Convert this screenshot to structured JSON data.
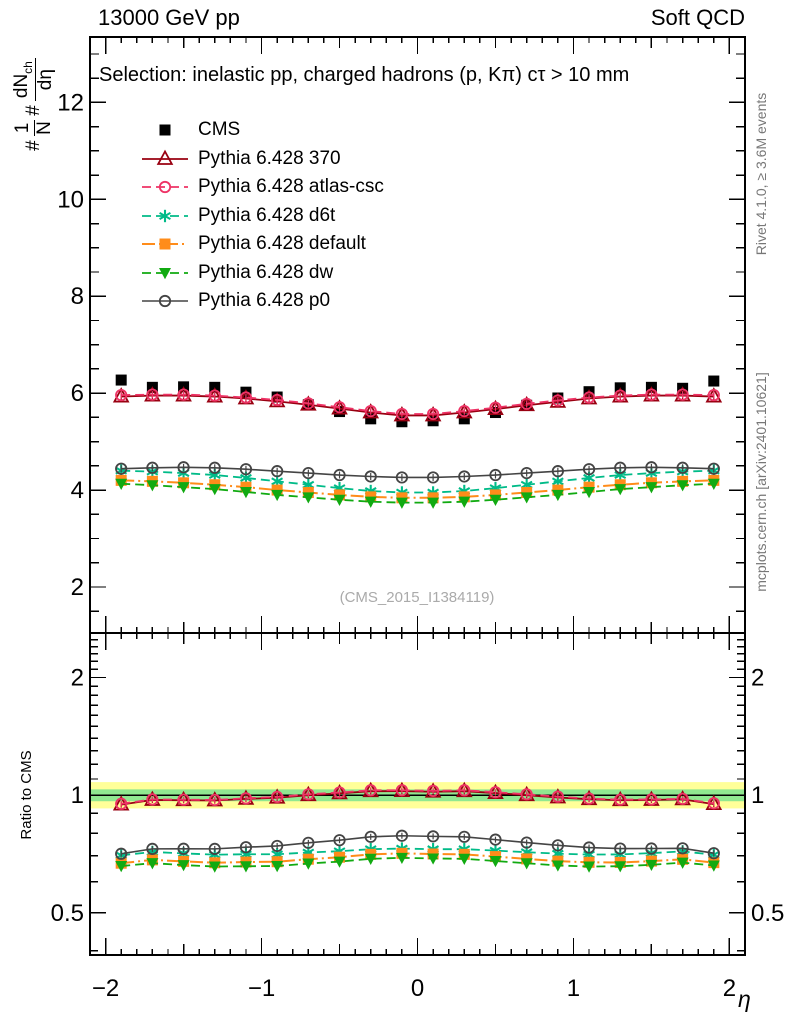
{
  "header": {
    "title_left": "13000 GeV pp",
    "title_right": "Soft QCD"
  },
  "main_panel": {
    "selection_label": "Selection: inelastic pp, charged hadrons (p, Kπ) cτ > 10 mm",
    "watermark": "(CMS_2015_I1384119)",
    "ylabel_parts": {
      "hash1": "#",
      "num1": "1",
      "den1": "N",
      "hash2": "#",
      "num2": "dN",
      "num2_sub": "ch",
      "den2": "dη"
    }
  },
  "ratio_panel": {
    "ylabel": "Ratio to CMS"
  },
  "side_notes": {
    "top": "Rivet 4.1.0, ≥ 3.6M events",
    "bottom": "mcplots.cern.ch [arXiv:2401.10621]"
  },
  "xaxis_label": "η",
  "chart_data": {
    "type": "line",
    "title": "13000 GeV pp",
    "context_tag": "Soft QCD",
    "selection": "Selection: inelastic pp, charged hadrons (p, Kπ) cτ > 10 mm",
    "watermark": "(CMS_2015_I1384119)",
    "xlabel": "η",
    "ylabel": "# 1/N # dN_ch/dη",
    "ratio_ylabel": "Ratio to CMS",
    "x": [
      -1.9,
      -1.7,
      -1.5,
      -1.3,
      -1.1,
      -0.9,
      -0.7,
      -0.5,
      -0.3,
      -0.1,
      0.1,
      0.3,
      0.5,
      0.7,
      0.9,
      1.1,
      1.3,
      1.5,
      1.7,
      1.9
    ],
    "series": [
      {
        "label": "CMS",
        "color": "#000000",
        "marker": "square",
        "fill": true,
        "line": "none",
        "lw": 0,
        "values": [
          6.27,
          6.12,
          6.13,
          6.12,
          6.02,
          5.92,
          5.76,
          5.62,
          5.47,
          5.41,
          5.43,
          5.47,
          5.6,
          5.75,
          5.9,
          6.03,
          6.11,
          6.12,
          6.1,
          6.25
        ]
      },
      {
        "label": "Pythia 6.428 370",
        "color": "#990011",
        "marker": "triangle-up",
        "fill": false,
        "line": "solid",
        "lw": 1.8,
        "values": [
          5.93,
          5.95,
          5.95,
          5.93,
          5.89,
          5.83,
          5.76,
          5.68,
          5.6,
          5.54,
          5.54,
          5.6,
          5.67,
          5.75,
          5.82,
          5.89,
          5.93,
          5.95,
          5.95,
          5.93
        ]
      },
      {
        "label": "Pythia 6.428 atlas-csc",
        "color": "#ee3366",
        "marker": "circle",
        "fill": false,
        "line": "dash",
        "lw": 1.8,
        "values": [
          5.96,
          5.97,
          5.97,
          5.95,
          5.91,
          5.86,
          5.79,
          5.71,
          5.63,
          5.57,
          5.57,
          5.63,
          5.7,
          5.78,
          5.85,
          5.91,
          5.95,
          5.97,
          5.97,
          5.96
        ]
      },
      {
        "label": "Pythia 6.428 d6t",
        "color": "#00bb88",
        "marker": "asterisk",
        "fill": false,
        "line": "dash",
        "lw": 1.8,
        "values": [
          4.4,
          4.38,
          4.35,
          4.31,
          4.25,
          4.18,
          4.11,
          4.04,
          3.98,
          3.95,
          3.95,
          3.98,
          4.04,
          4.11,
          4.18,
          4.25,
          4.31,
          4.35,
          4.38,
          4.4
        ]
      },
      {
        "label": "Pythia 6.428 default",
        "color": "#ff8c1a",
        "marker": "square",
        "fill": true,
        "line": "dashdot",
        "lw": 2,
        "values": [
          4.2,
          4.18,
          4.15,
          4.11,
          4.06,
          4.0,
          3.95,
          3.9,
          3.86,
          3.84,
          3.84,
          3.86,
          3.9,
          3.95,
          4.0,
          4.06,
          4.11,
          4.15,
          4.18,
          4.2
        ]
      },
      {
        "label": "Pythia 6.428 dw",
        "color": "#11aa11",
        "marker": "triangle-down",
        "fill": true,
        "line": "dash",
        "lw": 1.8,
        "values": [
          4.13,
          4.1,
          4.06,
          4.02,
          3.96,
          3.9,
          3.85,
          3.8,
          3.76,
          3.74,
          3.74,
          3.76,
          3.8,
          3.85,
          3.9,
          3.96,
          4.02,
          4.06,
          4.1,
          4.13
        ]
      },
      {
        "label": "Pythia 6.428 p0",
        "color": "#444444",
        "marker": "circle",
        "fill": false,
        "line": "solid",
        "lw": 1.6,
        "values": [
          4.44,
          4.46,
          4.47,
          4.46,
          4.43,
          4.39,
          4.35,
          4.31,
          4.28,
          4.26,
          4.26,
          4.28,
          4.31,
          4.35,
          4.39,
          4.43,
          4.46,
          4.47,
          4.46,
          4.44
        ]
      }
    ],
    "axes": {
      "xlim": [
        -2.1,
        2.1
      ],
      "x_major": {
        "values": [
          -2,
          -1,
          0,
          1,
          2
        ],
        "labels": [
          "−2",
          "−1",
          "0",
          "1",
          "2"
        ]
      },
      "main_ylim": [
        1.05,
        13.35
      ],
      "main_y_major": {
        "values": [
          2,
          4,
          6,
          8,
          10,
          12
        ],
        "labels": [
          "2",
          "4",
          "6",
          "8",
          "10",
          "12"
        ]
      },
      "ratio_ylim": [
        0.39,
        2.6
      ],
      "ratio_scale": "log",
      "ratio_y_major": {
        "values": [
          0.5,
          1,
          2
        ],
        "labels": [
          "0.5",
          "1",
          "2"
        ]
      },
      "grid": false,
      "legend_position": "top-left-inside"
    },
    "ratio": {
      "reference": "CMS",
      "bands": {
        "yellow": [
          0.925,
          1.08
        ],
        "green": [
          0.965,
          1.035
        ]
      },
      "band_colors": {
        "yellow": "#ffff99",
        "green": "#90e890"
      }
    }
  }
}
